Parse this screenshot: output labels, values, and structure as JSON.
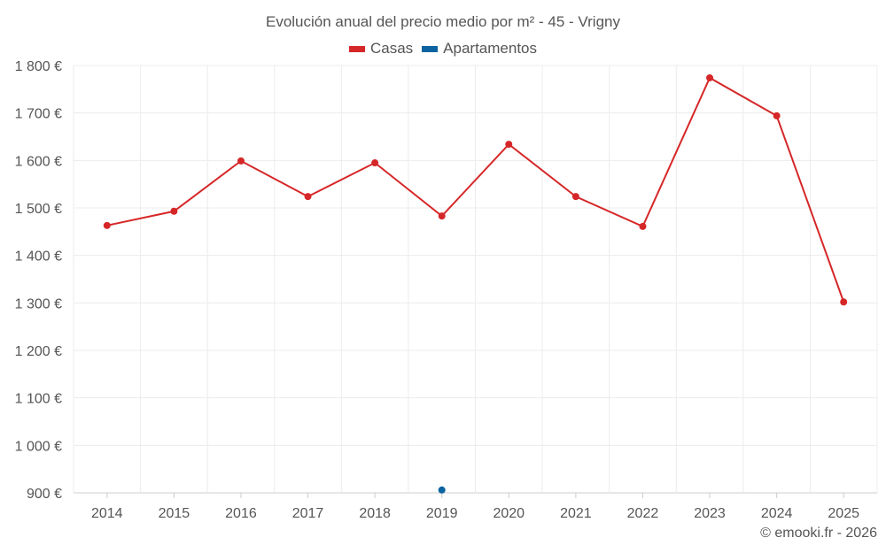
{
  "chart_data": {
    "type": "line",
    "title": "Evolución anual del precio medio por m² - 45 - Vrigny",
    "categories": [
      "2014",
      "2015",
      "2016",
      "2017",
      "2018",
      "2019",
      "2020",
      "2021",
      "2022",
      "2023",
      "2024",
      "2025"
    ],
    "series": [
      {
        "name": "Casas",
        "color": "#d62728",
        "values": [
          1463,
          1493,
          1599,
          1524,
          1595,
          1483,
          1634,
          1524,
          1461,
          1774,
          1694,
          1302
        ]
      },
      {
        "name": "Apartamentos",
        "color": "#0b63a0",
        "values": [
          null,
          null,
          null,
          null,
          null,
          906,
          null,
          null,
          null,
          null,
          null,
          null
        ]
      }
    ],
    "ylim": [
      900,
      1800
    ],
    "yticks": [
      900,
      1000,
      1100,
      1200,
      1300,
      1400,
      1500,
      1600,
      1700,
      1800
    ],
    "ytick_labels": [
      "900 €",
      "1 000 €",
      "1 100 €",
      "1 200 €",
      "1 300 €",
      "1 400 €",
      "1 500 €",
      "1 600 €",
      "1 700 €",
      "1 800 €"
    ],
    "grid": true,
    "legend_position": "top-center"
  },
  "credit": "© emooki.fr - 2026"
}
